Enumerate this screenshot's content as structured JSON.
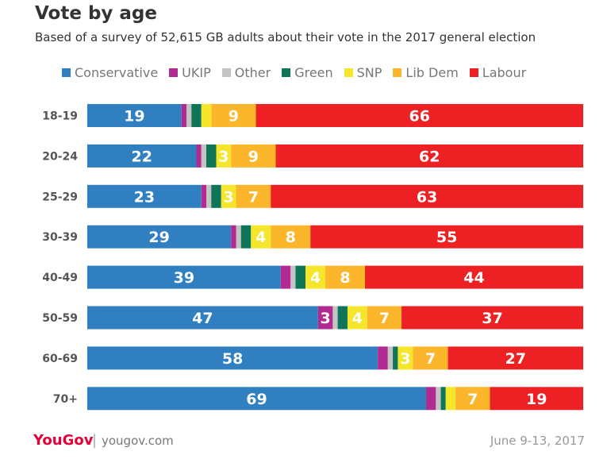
{
  "chart_data": {
    "type": "bar",
    "orientation": "horizontal",
    "stacked": true,
    "title": "Vote by age",
    "subtitle": "Based of a survey of 52,615 GB adults about their vote in the 2017 general election",
    "categories": [
      "18-19",
      "20-24",
      "25-29",
      "30-39",
      "40-49",
      "50-59",
      "60-69",
      "70+"
    ],
    "series": [
      {
        "name": "Conservative",
        "color": "#2f7fc1",
        "values": [
          19,
          22,
          23,
          29,
          39,
          47,
          58,
          69
        ]
      },
      {
        "name": "UKIP",
        "color": "#b02a91",
        "values": [
          1,
          1,
          1,
          1,
          2,
          3,
          2,
          2
        ]
      },
      {
        "name": "Other",
        "color": "#c3c3c3",
        "values": [
          1,
          1,
          1,
          1,
          1,
          1,
          1,
          1
        ]
      },
      {
        "name": "Green",
        "color": "#0e7559",
        "values": [
          2,
          2,
          2,
          2,
          2,
          2,
          1,
          1
        ]
      },
      {
        "name": "SNP",
        "color": "#f5e52b",
        "values": [
          2,
          3,
          3,
          4,
          4,
          4,
          3,
          2
        ]
      },
      {
        "name": "Lib Dem",
        "color": "#fbb62c",
        "values": [
          9,
          9,
          7,
          8,
          8,
          7,
          7,
          7
        ]
      },
      {
        "name": "Labour",
        "color": "#ed2124",
        "values": [
          66,
          62,
          63,
          55,
          44,
          37,
          27,
          19
        ]
      }
    ],
    "label_min": 3,
    "legend": "top"
  },
  "footer": {
    "logo": "YouGov",
    "separator": "|",
    "url": "yougov.com",
    "date": "June 9-13, 2017"
  }
}
